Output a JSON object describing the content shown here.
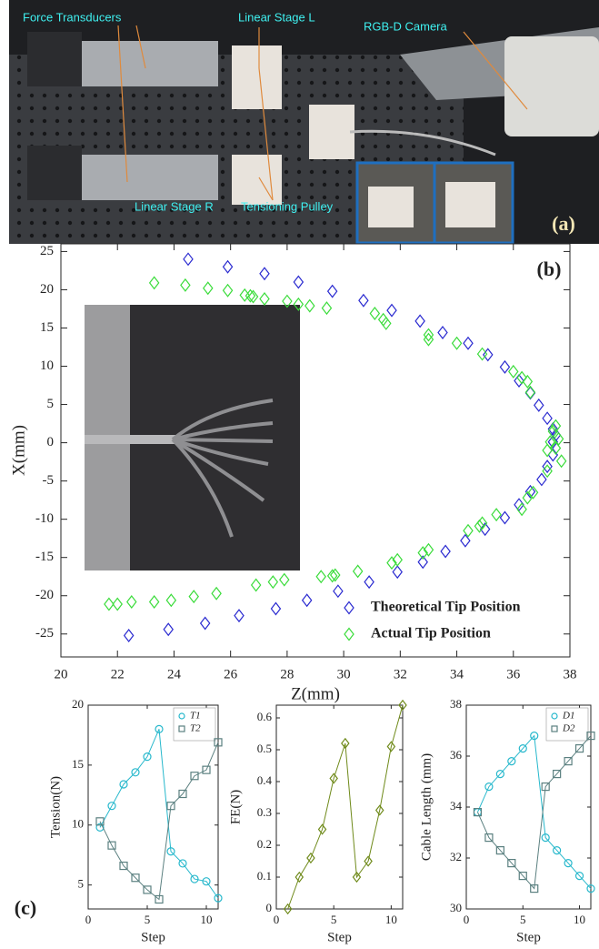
{
  "figure": {
    "panel_a": {
      "labels": [
        "Force Transducers",
        "Linear Stage L",
        "RGB-D Camera",
        "Linear Stage R",
        "Tensioning Pulley"
      ],
      "tag": "(a)"
    }
  },
  "chart_data": [
    {
      "type": "scatter",
      "tag": "(b)",
      "xlabel": "Z(mm)",
      "ylabel": "X(mm)",
      "xlim": [
        20,
        38
      ],
      "ylim": [
        -28,
        26
      ],
      "xticks": [
        20,
        22,
        24,
        26,
        28,
        30,
        32,
        34,
        36,
        38
      ],
      "yticks": [
        -25,
        -20,
        -15,
        -10,
        -5,
        0,
        5,
        10,
        15,
        20,
        25
      ],
      "series": [
        {
          "name": "Theoretical Tip Position",
          "color": "#2a2ad0",
          "marker": "diamond",
          "x": [
            24.5,
            25.9,
            27.2,
            28.4,
            29.6,
            30.7,
            31.7,
            32.7,
            33.5,
            34.4,
            35.1,
            35.7,
            36.2,
            36.6,
            36.9,
            37.2,
            37.4,
            37.5,
            37.4,
            37.4,
            37.2,
            37.0,
            36.6,
            36.2,
            35.7,
            35.0,
            34.3,
            33.6,
            32.8,
            31.9,
            30.9,
            29.8,
            28.7,
            27.6,
            26.3,
            25.1,
            23.8,
            22.4
          ],
          "values": [
            24.0,
            23.0,
            22.1,
            21.0,
            19.8,
            18.6,
            17.3,
            15.9,
            14.4,
            13.0,
            11.5,
            9.9,
            8.1,
            6.5,
            4.9,
            3.2,
            1.8,
            1.0,
            0.1,
            -1.6,
            -3.1,
            -4.8,
            -6.4,
            -8.1,
            -9.8,
            -11.3,
            -12.8,
            -14.2,
            -15.6,
            -16.9,
            -18.2,
            -19.4,
            -20.6,
            -21.7,
            -22.6,
            -23.6,
            -24.4,
            -25.2
          ]
        },
        {
          "name": "Actual Tip Position",
          "color": "#3bdc3b",
          "marker": "diamond",
          "x": [
            23.3,
            24.4,
            25.2,
            25.9,
            26.5,
            26.7,
            26.8,
            27.2,
            28.0,
            28.4,
            28.8,
            29.4,
            31.1,
            31.4,
            31.5,
            33.0,
            33.0,
            34.0,
            34.9,
            36.0,
            36.3,
            36.5,
            36.6,
            37.5,
            37.4,
            37.6,
            37.3,
            37.5,
            37.2,
            37.7,
            37.2,
            36.7,
            36.5,
            36.3,
            35.4,
            34.9,
            34.8,
            34.4,
            33.0,
            32.8,
            31.9,
            31.7,
            30.5,
            29.7,
            29.6,
            29.2,
            27.9,
            27.5,
            26.9,
            25.5,
            24.7,
            23.9,
            23.3,
            22.5,
            22.0,
            21.7
          ],
          "values": [
            20.9,
            20.6,
            20.2,
            19.9,
            19.3,
            19.2,
            19.1,
            18.8,
            18.5,
            18.1,
            17.9,
            17.6,
            16.9,
            16.1,
            15.6,
            14.1,
            13.5,
            13.0,
            11.6,
            9.3,
            8.5,
            8.0,
            6.6,
            2.2,
            1.5,
            0.5,
            0.1,
            -0.7,
            -1.0,
            -2.4,
            -3.7,
            -6.5,
            -7.2,
            -8.7,
            -9.4,
            -10.5,
            -10.9,
            -11.5,
            -14.0,
            -14.4,
            -15.3,
            -15.7,
            -16.8,
            -17.3,
            -17.4,
            -17.5,
            -17.9,
            -18.2,
            -18.6,
            -19.7,
            -20.1,
            -20.6,
            -20.8,
            -20.8,
            -21.1,
            -21.1
          ]
        }
      ]
    },
    {
      "type": "line",
      "tag": "(c)",
      "xlabel": "Step",
      "ylabel": "Tension(N)",
      "x": [
        1,
        2,
        3,
        4,
        5,
        6,
        7,
        8,
        9,
        10,
        11
      ],
      "xlim": [
        0,
        11
      ],
      "xticks": [
        0,
        5,
        10
      ],
      "ylim": [
        3,
        20
      ],
      "yticks": [
        5,
        10,
        15,
        20
      ],
      "series": [
        {
          "name": "T1",
          "color": "#27b8cc",
          "marker": "circle",
          "values": [
            9.8,
            11.6,
            13.4,
            14.4,
            15.7,
            18.0,
            7.8,
            6.8,
            5.5,
            5.3,
            3.9
          ]
        },
        {
          "name": "T2",
          "color": "#5b8080",
          "marker": "square",
          "values": [
            10.3,
            8.3,
            6.6,
            5.6,
            4.6,
            3.8,
            11.6,
            12.6,
            14.1,
            14.6,
            16.9
          ]
        }
      ]
    },
    {
      "type": "line",
      "xlabel": "Step",
      "ylabel": "FE(N)",
      "x": [
        1,
        2,
        3,
        4,
        5,
        6,
        7,
        8,
        9,
        10,
        11
      ],
      "xlim": [
        0,
        11
      ],
      "xticks": [
        0,
        5,
        10
      ],
      "ylim": [
        0,
        0.64
      ],
      "yticks": [
        0,
        0.1,
        0.2,
        0.3,
        0.4,
        0.5,
        0.6
      ],
      "series": [
        {
          "color": "#6f8a1a",
          "marker": "diamond",
          "values": [
            0,
            0.1,
            0.16,
            0.25,
            0.41,
            0.52,
            0.1,
            0.15,
            0.31,
            0.51,
            0.64
          ]
        }
      ]
    },
    {
      "type": "line",
      "xlabel": "Step",
      "ylabel": "Cable Length (mm)",
      "x": [
        1,
        2,
        3,
        4,
        5,
        6,
        7,
        8,
        9,
        10,
        11
      ],
      "xlim": [
        0,
        11
      ],
      "xticks": [
        0,
        5,
        10
      ],
      "ylim": [
        30,
        38
      ],
      "yticks": [
        30,
        32,
        34,
        36,
        38
      ],
      "series": [
        {
          "name": "D1",
          "color": "#27b8cc",
          "marker": "circle",
          "values": [
            33.8,
            34.8,
            35.3,
            35.8,
            36.3,
            36.8,
            32.8,
            32.3,
            31.8,
            31.3,
            30.8
          ]
        },
        {
          "name": "D2",
          "color": "#5b8080",
          "marker": "square",
          "values": [
            33.8,
            32.8,
            32.3,
            31.8,
            31.3,
            30.8,
            34.8,
            35.3,
            35.8,
            36.3,
            36.8
          ]
        }
      ]
    }
  ]
}
